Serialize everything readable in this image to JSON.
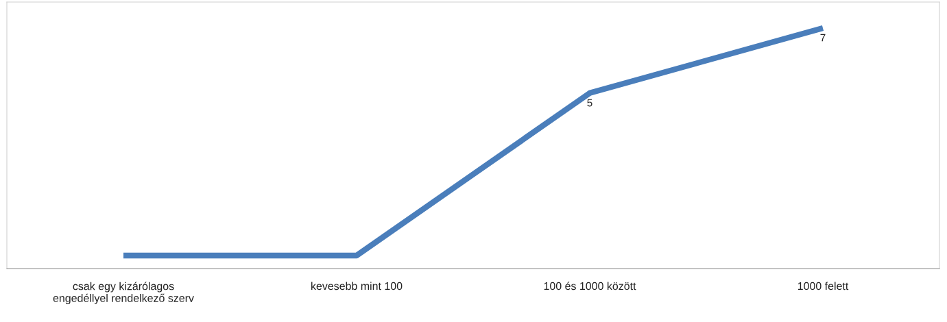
{
  "chart_data": {
    "type": "line",
    "categories": [
      "csak egy kizárólagos\nengedéllyel rendelkező szerv",
      "kevesebb mint 100",
      "100 és 1000 között",
      "1000 felett"
    ],
    "series": [
      {
        "color": "#4a7ebb",
        "values": [
          0,
          0,
          5,
          7
        ],
        "value_labels": [
          null,
          null,
          "5",
          "7"
        ]
      }
    ],
    "ylim": [
      -0.4,
      7.8
    ],
    "tick_labels": "x",
    "grid": false,
    "legend": false,
    "marker": "none",
    "line_style": "solid"
  }
}
